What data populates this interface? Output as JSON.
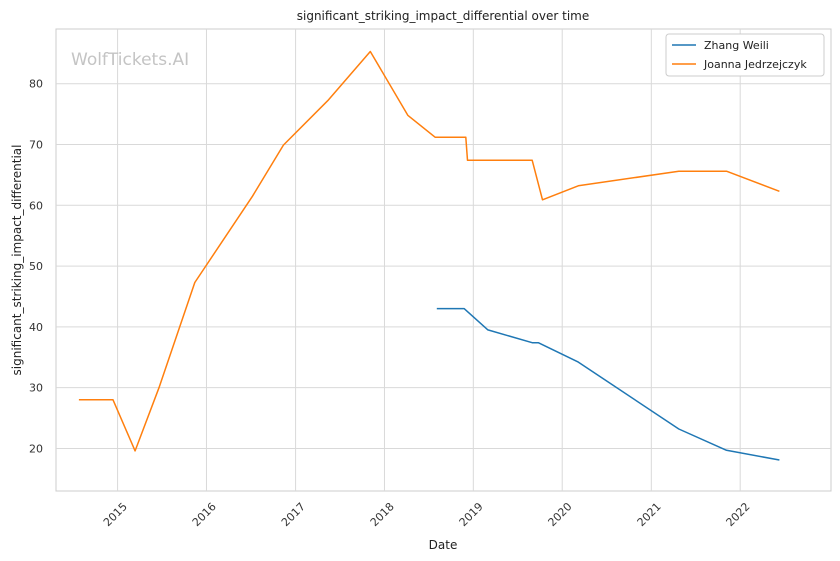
{
  "chart_data": {
    "type": "line",
    "title": "significant_striking_impact_differential over time",
    "xlabel": "Date",
    "ylabel": "significant_striking_impact_differential",
    "watermark": "WolfTickets.AI",
    "x_ticks": [
      "2015",
      "2016",
      "2017",
      "2018",
      "2019",
      "2020",
      "2021",
      "2022"
    ],
    "y_ticks": [
      20,
      30,
      40,
      50,
      60,
      70,
      80
    ],
    "xlim": [
      "2014-04-23",
      "2023-01-09"
    ],
    "ylim": [
      13,
      89
    ],
    "grid": true,
    "legend_position": "top-right",
    "series": [
      {
        "name": "Zhang Weili",
        "color": "#1f77b4",
        "points": [
          [
            "2018-08-04",
            43.0
          ],
          [
            "2018-11-24",
            43.0
          ],
          [
            "2019-03-02",
            39.5
          ],
          [
            "2019-08-31",
            37.4
          ],
          [
            "2019-09-25",
            37.4
          ],
          [
            "2020-03-07",
            34.2
          ],
          [
            "2021-04-24",
            23.2
          ],
          [
            "2021-11-06",
            19.7
          ],
          [
            "2022-06-11",
            18.1
          ]
        ]
      },
      {
        "name": "Joanna Jedrzejczyk",
        "color": "#ff7f0e",
        "points": [
          [
            "2014-07-26",
            28.0
          ],
          [
            "2014-12-13",
            28.0
          ],
          [
            "2015-03-14",
            19.6
          ],
          [
            "2015-06-20",
            30.0
          ],
          [
            "2015-11-14",
            47.3
          ],
          [
            "2016-07-08",
            61.5
          ],
          [
            "2016-11-12",
            69.9
          ],
          [
            "2017-05-13",
            77.2
          ],
          [
            "2017-11-04",
            85.3
          ],
          [
            "2018-04-07",
            74.8
          ],
          [
            "2018-07-28",
            71.2
          ],
          [
            "2018-12-01",
            71.2
          ],
          [
            "2018-12-08",
            67.4
          ],
          [
            "2019-08-31",
            67.4
          ],
          [
            "2019-10-12",
            60.9
          ],
          [
            "2020-03-07",
            63.2
          ],
          [
            "2021-04-24",
            65.6
          ],
          [
            "2021-11-06",
            65.6
          ],
          [
            "2022-06-11",
            62.3
          ]
        ]
      }
    ]
  }
}
